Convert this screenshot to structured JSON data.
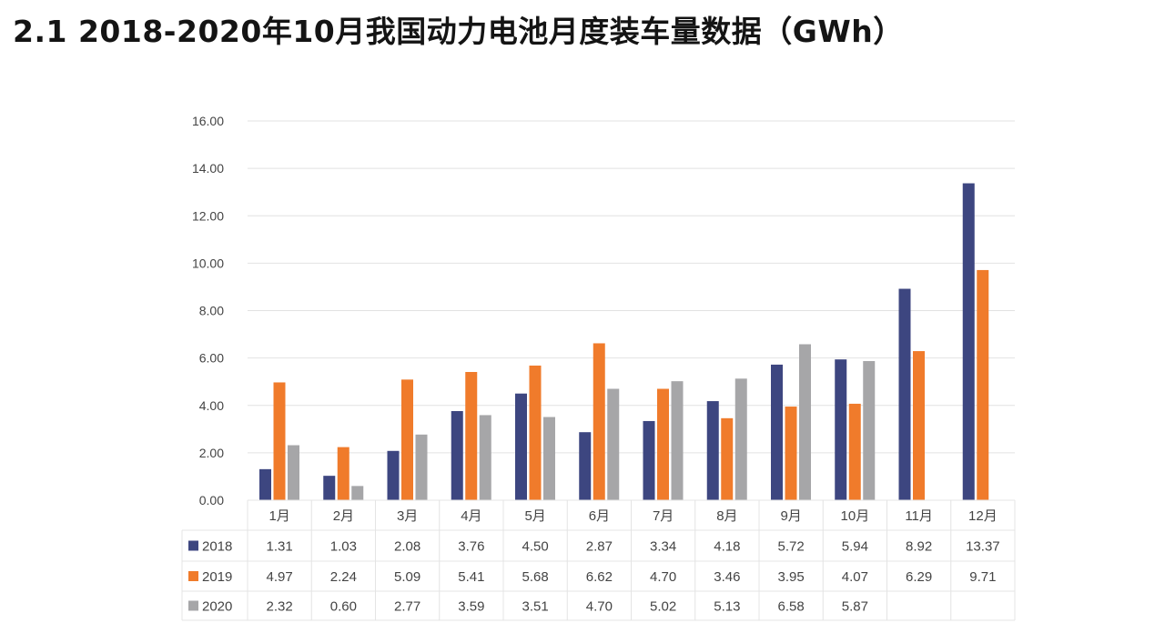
{
  "chart_data": {
    "type": "bar",
    "title": "2.1 2018-2020年10月我国动力电池月度装车量数据（GWh）",
    "xlabel": "",
    "ylabel": "",
    "ylim": [
      0,
      16
    ],
    "yticks": [
      "0.00",
      "2.00",
      "4.00",
      "6.00",
      "8.00",
      "10.00",
      "12.00",
      "14.00",
      "16.00"
    ],
    "grid": true,
    "legend": "data-table-bottom",
    "categories": [
      "1月",
      "2月",
      "3月",
      "4月",
      "5月",
      "6月",
      "7月",
      "8月",
      "9月",
      "10月",
      "11月",
      "12月"
    ],
    "series": [
      {
        "name": "2018",
        "color": "#3d4680",
        "values": [
          1.31,
          1.03,
          2.08,
          3.76,
          4.5,
          2.87,
          3.34,
          4.18,
          5.72,
          5.94,
          8.92,
          13.37
        ],
        "labels": [
          "1.31",
          "1.03",
          "2.08",
          "3.76",
          "4.50",
          "2.87",
          "3.34",
          "4.18",
          "5.72",
          "5.94",
          "8.92",
          "13.37"
        ]
      },
      {
        "name": "2019",
        "color": "#f07b2b",
        "values": [
          4.97,
          2.24,
          5.09,
          5.41,
          5.68,
          6.62,
          4.7,
          3.46,
          3.95,
          4.07,
          6.29,
          9.71
        ],
        "labels": [
          "4.97",
          "2.24",
          "5.09",
          "5.41",
          "5.68",
          "6.62",
          "4.70",
          "3.46",
          "3.95",
          "4.07",
          "6.29",
          "9.71"
        ]
      },
      {
        "name": "2020",
        "color": "#a6a6a8",
        "values": [
          2.32,
          0.6,
          2.77,
          3.59,
          3.51,
          4.7,
          5.02,
          5.13,
          6.58,
          5.87,
          null,
          null
        ],
        "labels": [
          "2.32",
          "0.60",
          "2.77",
          "3.59",
          "3.51",
          "4.70",
          "5.02",
          "5.13",
          "6.58",
          "5.87",
          "",
          ""
        ]
      }
    ]
  }
}
